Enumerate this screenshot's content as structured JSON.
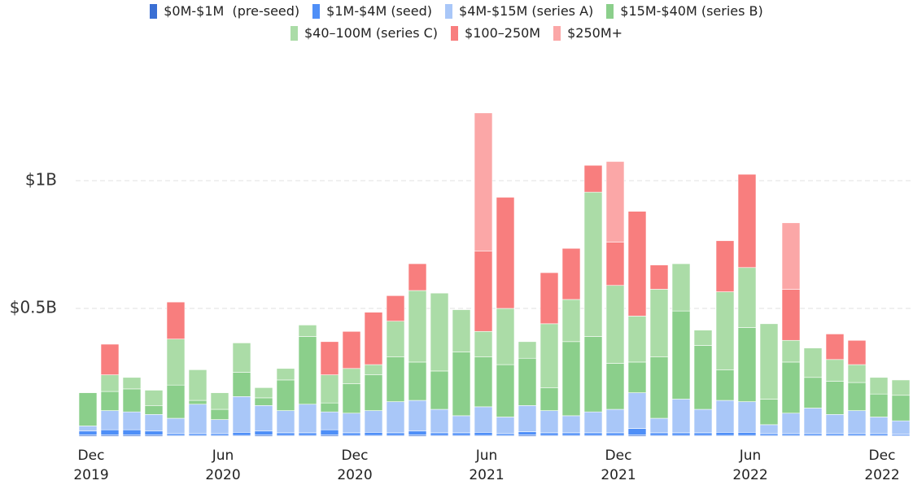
{
  "chart_data": {
    "type": "stacked_bar",
    "categories": [
      "Dec\n2019",
      null,
      null,
      null,
      null,
      null,
      "Jun\n2020",
      null,
      null,
      null,
      null,
      null,
      "Dec\n2020",
      null,
      null,
      null,
      null,
      null,
      "Jun\n2021",
      null,
      null,
      null,
      null,
      null,
      "Dec\n2021",
      null,
      null,
      null,
      null,
      null,
      "Jun\n2022",
      null,
      null,
      null,
      null,
      null,
      "Dec\n2022",
      null
    ],
    "series": [
      {
        "name": "$0M-$1M  (pre-seed)",
        "color": "#3a6fd4",
        "values": [
          0.005,
          0.005,
          0.005,
          0.005,
          0.003,
          0.003,
          0.003,
          0.003,
          0.005,
          0.003,
          0.003,
          0.005,
          0.003,
          0.003,
          0.003,
          0.005,
          0.003,
          0.003,
          0.003,
          0.003,
          0.005,
          0.003,
          0.003,
          0.003,
          0.003,
          0.005,
          0.003,
          0.003,
          0.003,
          0.003,
          0.003,
          0.003,
          0.003,
          0.003,
          0.003,
          0.003,
          0.003,
          0.003
        ]
      },
      {
        "name": "$1M-$4M (seed)",
        "color": "#4f8ff7",
        "values": [
          0.015,
          0.02,
          0.02,
          0.015,
          0.007,
          0.007,
          0.007,
          0.012,
          0.015,
          0.01,
          0.01,
          0.02,
          0.01,
          0.012,
          0.01,
          0.015,
          0.01,
          0.01,
          0.012,
          0.007,
          0.012,
          0.01,
          0.01,
          0.01,
          0.01,
          0.025,
          0.01,
          0.01,
          0.01,
          0.012,
          0.012,
          0.007,
          0.007,
          0.007,
          0.007,
          0.007,
          0.007,
          0.005
        ]
      },
      {
        "name": "$4M-$15M (series A)",
        "color": "#a9c7f8",
        "values": [
          0.02,
          0.075,
          0.07,
          0.065,
          0.06,
          0.115,
          0.055,
          0.14,
          0.1,
          0.087,
          0.112,
          0.07,
          0.077,
          0.085,
          0.122,
          0.12,
          0.092,
          0.067,
          0.1,
          0.065,
          0.103,
          0.087,
          0.067,
          0.082,
          0.092,
          0.14,
          0.057,
          0.132,
          0.092,
          0.125,
          0.12,
          0.035,
          0.08,
          0.1,
          0.075,
          0.09,
          0.065,
          0.052
        ]
      },
      {
        "name": "$15M-$40M (series B)",
        "color": "#8bcf8b",
        "values": [
          0.13,
          0.075,
          0.09,
          0.035,
          0.13,
          0.015,
          0.04,
          0.095,
          0.03,
          0.12,
          0.265,
          0.035,
          0.115,
          0.14,
          0.175,
          0.15,
          0.15,
          0.25,
          0.195,
          0.205,
          0.185,
          0.09,
          0.29,
          0.295,
          0.18,
          0.12,
          0.24,
          0.345,
          0.25,
          0.12,
          0.29,
          0.1,
          0.2,
          0.12,
          0.13,
          0.11,
          0.09,
          0.1
        ]
      },
      {
        "name": "$40–100M (series C)",
        "color": "#abdca7",
        "values": [
          0,
          0.065,
          0.045,
          0.06,
          0.18,
          0.12,
          0.065,
          0.115,
          0.04,
          0.045,
          0.045,
          0.11,
          0.06,
          0.04,
          0.14,
          0.28,
          0.305,
          0.165,
          0.1,
          0.22,
          0.065,
          0.25,
          0.165,
          0.565,
          0.305,
          0.18,
          0.265,
          0.185,
          0.06,
          0.305,
          0.235,
          0.295,
          0.085,
          0.115,
          0.085,
          0.07,
          0.065,
          0.06
        ]
      },
      {
        "name": "$100–250M",
        "color": "#f87e7e",
        "values": [
          0,
          0.12,
          0,
          0,
          0.145,
          0,
          0,
          0,
          0,
          0,
          0,
          0.13,
          0.145,
          0.205,
          0.1,
          0.105,
          0,
          0,
          0.315,
          0.435,
          0,
          0.2,
          0.2,
          0.105,
          0.17,
          0.41,
          0.095,
          0,
          0,
          0.2,
          0.365,
          0,
          0.2,
          0,
          0.1,
          0.095,
          0,
          0
        ]
      },
      {
        "name": "$250M+",
        "color": "#fba7a7",
        "values": [
          0,
          0,
          0,
          0,
          0,
          0,
          0,
          0,
          0,
          0,
          0,
          0,
          0,
          0,
          0,
          0,
          0,
          0,
          0.54,
          0,
          0,
          0,
          0,
          0,
          0.315,
          0,
          0,
          0,
          0,
          0,
          0,
          0,
          0.26,
          0,
          0,
          0,
          0,
          0
        ]
      }
    ],
    "ylim": [
      0,
      1.4
    ],
    "yticks": [
      {
        "value": 0.5,
        "label": "$0.5B"
      },
      {
        "value": 1,
        "label": "$1B"
      }
    ],
    "grid": true
  }
}
